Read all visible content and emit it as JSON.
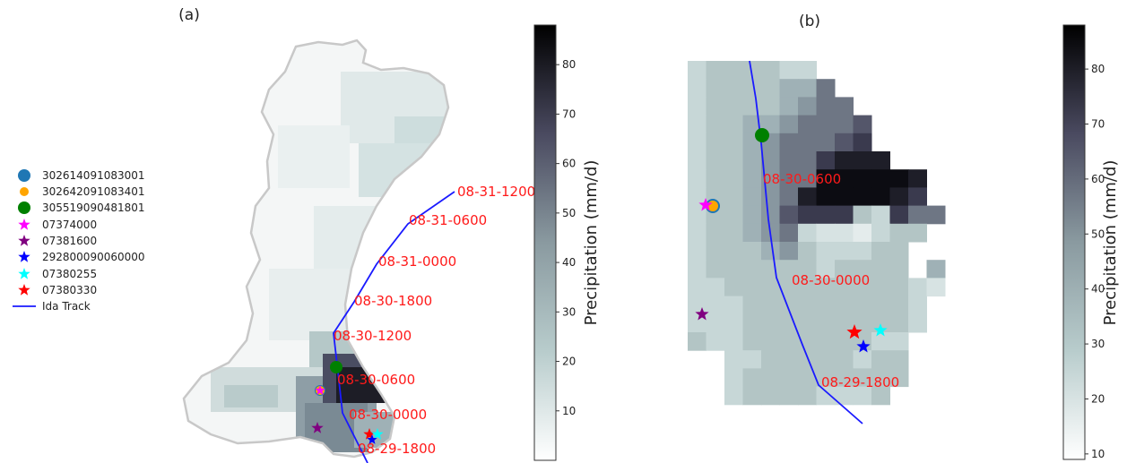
{
  "panels": [
    {
      "id": "a",
      "title": "(a)"
    },
    {
      "id": "b",
      "title": "(b)"
    }
  ],
  "colorbars": [
    {
      "label": "Precipitation (mm/d)",
      "ticks": [
        "10",
        "20",
        "30",
        "40",
        "50",
        "60",
        "70",
        "80"
      ],
      "vmin": 0,
      "vmax": 88
    },
    {
      "label": "Precipitation (mm/d)",
      "ticks": [
        "10",
        "20",
        "30",
        "40",
        "50",
        "60",
        "70",
        "80"
      ],
      "vmin": 9,
      "vmax": 88
    }
  ],
  "legend": [
    {
      "label": "302614091083001",
      "marker": "circle",
      "color": "#1f77b4"
    },
    {
      "label": "302642091083401",
      "marker": "circle",
      "color": "#ffa500"
    },
    {
      "label": "305519090481801",
      "marker": "circle",
      "color": "#008000"
    },
    {
      "label": "07374000",
      "marker": "star",
      "color": "#ff00ff"
    },
    {
      "label": "07381600",
      "marker": "star",
      "color": "#800080"
    },
    {
      "label": "292800090060000",
      "marker": "star",
      "color": "#0000ff"
    },
    {
      "label": "07380255",
      "marker": "star",
      "color": "#00ffff"
    },
    {
      "label": "07380330",
      "marker": "star",
      "color": "#ff0000"
    },
    {
      "label": "Ida Track",
      "marker": "line",
      "color": "#1a1aff"
    }
  ],
  "track_labels_a": [
    "08-31-1200",
    "08-31-0600",
    "08-31-0000",
    "08-30-1800",
    "08-30-1200",
    "08-30-0600",
    "08-30-0000",
    "08-29-1800"
  ],
  "track_labels_b": [
    "08-30-0600",
    "08-30-0000",
    "08-29-1800"
  ],
  "colors": {
    "track": "#1a1aff",
    "labels": "#ff1a1a",
    "cmap_low": "#ffffff",
    "cmap_high": "#000000"
  }
}
